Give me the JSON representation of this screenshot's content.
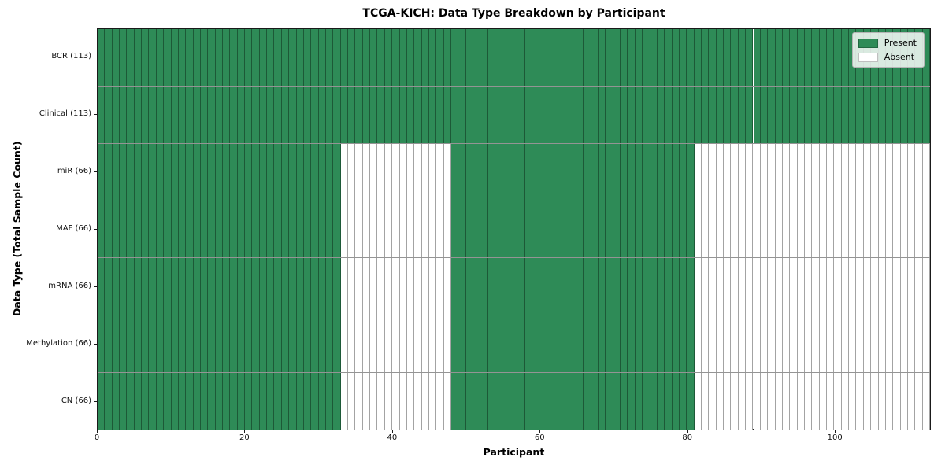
{
  "figure": {
    "background": "#ffffff"
  },
  "chart_data": {
    "type": "heatmap",
    "title": "TCGA-KICH: Data Type Breakdown by Participant",
    "xlabel": "Participant",
    "ylabel": "Data Type (Total Sample Count)",
    "n_participants": 113,
    "x_ticks": [
      0,
      20,
      40,
      60,
      80,
      100
    ],
    "grid": false,
    "rows": [
      {
        "label": "BCR (113)",
        "total_sample_count": 113,
        "present_ranges": [
          [
            0,
            113
          ]
        ]
      },
      {
        "label": "Clinical (113)",
        "total_sample_count": 113,
        "present_ranges": [
          [
            0,
            113
          ]
        ]
      },
      {
        "label": "miR (66)",
        "total_sample_count": 66,
        "present_ranges": [
          [
            0,
            33
          ],
          [
            48,
            81
          ]
        ]
      },
      {
        "label": "MAF (66)",
        "total_sample_count": 66,
        "present_ranges": [
          [
            0,
            33
          ],
          [
            48,
            81
          ]
        ]
      },
      {
        "label": "mRNA (66)",
        "total_sample_count": 66,
        "present_ranges": [
          [
            0,
            33
          ],
          [
            48,
            81
          ]
        ]
      },
      {
        "label": "Methylation (66)",
        "total_sample_count": 66,
        "present_ranges": [
          [
            0,
            33
          ],
          [
            48,
            81
          ]
        ]
      },
      {
        "label": "CN (66)",
        "total_sample_count": 66,
        "present_ranges": [
          [
            0,
            33
          ],
          [
            48,
            81
          ]
        ]
      }
    ],
    "legend": {
      "position": "upper right",
      "entries": [
        {
          "label": "Present",
          "color": "#2e8b57"
        },
        {
          "label": "Absent",
          "color": "#ffffff"
        }
      ]
    },
    "colors": {
      "present": "#2e8b57",
      "absent": "#ffffff",
      "cell_edge": "rgba(0,0,0,0.36)",
      "spine": "#1a1a1a"
    }
  }
}
